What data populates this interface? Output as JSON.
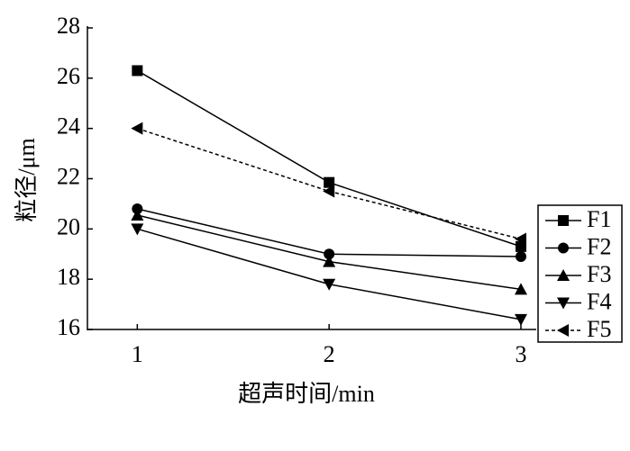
{
  "chart_data": {
    "type": "line",
    "x_label": "超声时间/min",
    "y_label": "粒径/μm",
    "x": [
      1,
      2,
      3
    ],
    "xlim": [
      0.74,
      3.08
    ],
    "xticks": [
      1,
      2,
      3
    ],
    "ylim": [
      16,
      28
    ],
    "yticks": [
      16,
      18,
      20,
      22,
      24,
      26,
      28
    ],
    "legend": "right",
    "series": [
      {
        "name": "F1",
        "color": "#000000",
        "marker": "square",
        "linestyle": "solid",
        "values": [
          26.3,
          21.85,
          19.3
        ]
      },
      {
        "name": "F2",
        "color": "#000000",
        "marker": "circle",
        "linestyle": "solid",
        "values": [
          20.8,
          19.0,
          18.9
        ]
      },
      {
        "name": "F3",
        "color": "#000000",
        "marker": "triangle-up",
        "linestyle": "solid",
        "values": [
          20.55,
          18.7,
          17.6
        ]
      },
      {
        "name": "F4",
        "color": "#000000",
        "marker": "triangle-down",
        "linestyle": "solid",
        "values": [
          20.0,
          17.8,
          16.4
        ]
      },
      {
        "name": "F5",
        "color": "#000000",
        "marker": "triangle-left",
        "linestyle": "dashed",
        "values": [
          24.0,
          21.5,
          19.6
        ]
      }
    ]
  }
}
